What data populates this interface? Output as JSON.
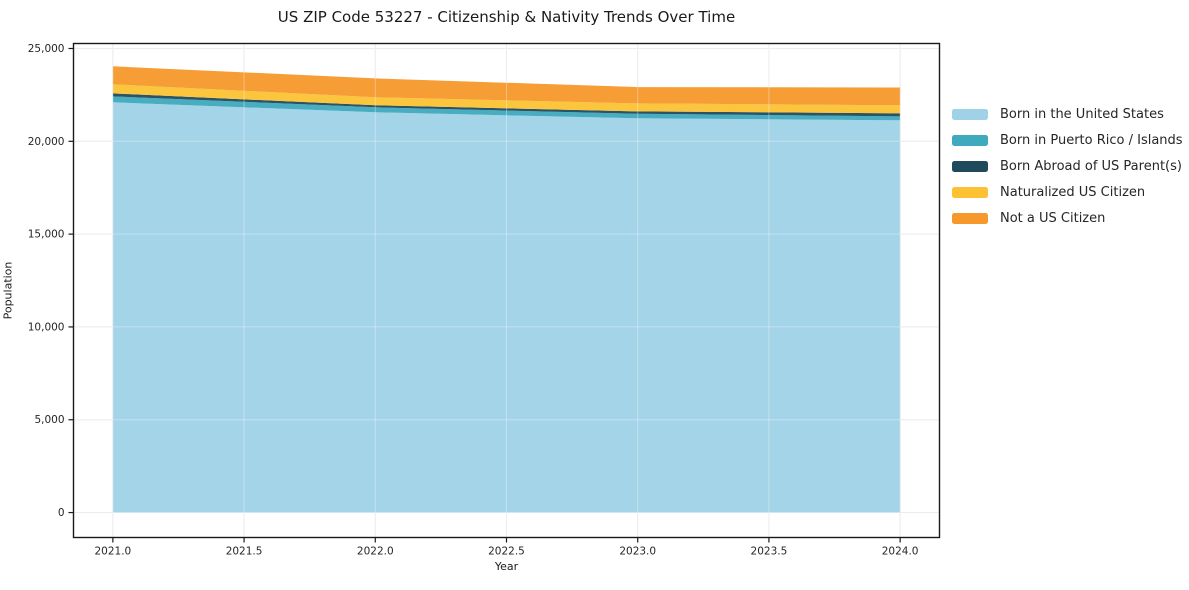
{
  "title": "US ZIP Code 53227 - Citizenship & Nativity Trends Over Time",
  "chart_data": {
    "type": "area",
    "stacked": true,
    "title": "US ZIP Code 53227 - Citizenship & Nativity Trends Over Time",
    "xlabel": "Year",
    "ylabel": "Population",
    "x": [
      2021,
      2022,
      2023,
      2024
    ],
    "series": [
      {
        "name": "Born in the United States",
        "color": "#9FD2E7",
        "values": [
          22100,
          21560,
          21240,
          21130
        ]
      },
      {
        "name": "Born in Puerto Rico / Islands",
        "color": "#3FA9BE",
        "values": [
          320,
          270,
          240,
          210
        ]
      },
      {
        "name": "Born Abroad of US Parent(s)",
        "color": "#1F4A5C",
        "values": [
          160,
          110,
          130,
          170
        ]
      },
      {
        "name": "Naturalized US Citizen",
        "color": "#FCC234",
        "values": [
          490,
          430,
          430,
          430
        ]
      },
      {
        "name": "Not a US Citizen",
        "color": "#F6982B",
        "values": [
          970,
          1020,
          880,
          960
        ]
      }
    ],
    "totals": [
      24040,
      23390,
      22920,
      22900
    ],
    "x_ticks": [
      2021.0,
      2021.5,
      2022.0,
      2022.5,
      2023.0,
      2023.5,
      2024.0
    ],
    "x_tick_labels": [
      "2021.0",
      "2021.5",
      "2022.0",
      "2022.5",
      "2023.0",
      "2023.5",
      "2024.0"
    ],
    "y_ticks": [
      0,
      5000,
      10000,
      15000,
      20000,
      25000
    ],
    "y_tick_labels": [
      "0",
      "5,000",
      "10,000",
      "15,000",
      "20,000",
      "25,000"
    ],
    "xlim": [
      2020.85,
      2024.15
    ],
    "ylim": [
      -1344,
      25269
    ],
    "grid": true,
    "legend_position": "right",
    "colors": {
      "grid": "#E2E2EA",
      "frame": "#1a1a1a",
      "tick_label": "#262626",
      "background": "#ffffff"
    }
  }
}
